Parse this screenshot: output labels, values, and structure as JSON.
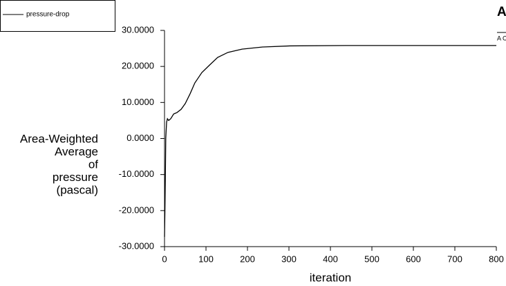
{
  "chart_data": {
    "type": "line",
    "legend_title": "pressure-drop",
    "ylabel": [
      "Area-Weighted",
      "Average",
      "of",
      "pressure",
      "(pascal)"
    ],
    "xlabel": "iteration",
    "logo": "A",
    "logo_sub": "A C",
    "series": [
      {
        "name": "pressure-drop",
        "color": "#000000",
        "x": [
          0,
          1,
          2,
          3,
          5,
          7,
          10,
          15,
          22,
          30,
          40,
          50,
          62,
          73,
          90,
          107,
          128,
          153,
          187,
          237,
          303,
          437,
          600,
          800
        ],
        "values": [
          -27.3,
          -20,
          -11,
          0,
          4.5,
          5.5,
          5,
          5.5,
          6.8,
          7.2,
          8.1,
          9.7,
          12.5,
          15.4,
          18.3,
          20.2,
          22.5,
          23.9,
          24.8,
          25.4,
          25.7,
          25.8,
          25.8,
          25.8
        ]
      }
    ],
    "xlim": [
      0,
      800
    ],
    "xticks": [
      0,
      100,
      200,
      300,
      400,
      500,
      600,
      700,
      800
    ],
    "ylim": [
      -30,
      30
    ],
    "yticks": [
      {
        "value": 30,
        "label": "30.0000"
      },
      {
        "value": 20,
        "label": "20.0000"
      },
      {
        "value": 10,
        "label": "10.0000"
      },
      {
        "value": 0,
        "label": "0.0000"
      },
      {
        "value": -10,
        "label": "-10.0000"
      },
      {
        "value": -20,
        "label": "-20.0000"
      },
      {
        "value": -30,
        "label": "-30.0000"
      }
    ]
  }
}
